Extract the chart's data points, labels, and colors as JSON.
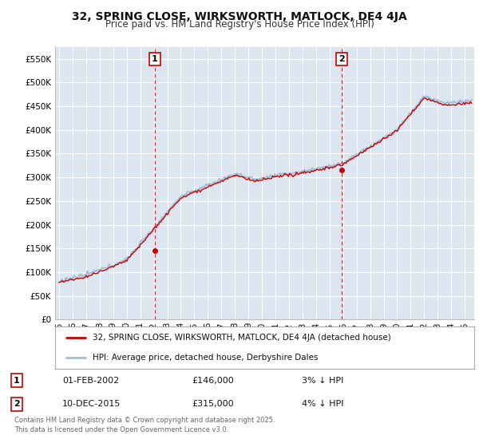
{
  "title": "32, SPRING CLOSE, WIRKSWORTH, MATLOCK, DE4 4JA",
  "subtitle": "Price paid vs. HM Land Registry's House Price Index (HPI)",
  "title_fontsize": 10,
  "subtitle_fontsize": 8.5,
  "ylim": [
    0,
    575000
  ],
  "yticks": [
    0,
    50000,
    100000,
    150000,
    200000,
    250000,
    300000,
    350000,
    400000,
    450000,
    500000,
    550000
  ],
  "ytick_labels": [
    "£0",
    "£50K",
    "£100K",
    "£150K",
    "£200K",
    "£250K",
    "£300K",
    "£350K",
    "£400K",
    "£450K",
    "£500K",
    "£550K"
  ],
  "background_color": "#ffffff",
  "plot_bg_color": "#dce6f1",
  "grid_color": "#ffffff",
  "annotation1": {
    "label": "1",
    "date_str": "01-FEB-2002",
    "price": 146000,
    "rel": "3% ↓ HPI"
  },
  "annotation2": {
    "label": "2",
    "date_str": "10-DEC-2015",
    "price": 315000,
    "rel": "4% ↓ HPI"
  },
  "legend_line1": "32, SPRING CLOSE, WIRKSWORTH, MATLOCK, DE4 4JA (detached house)",
  "legend_line2": "HPI: Average price, detached house, Derbyshire Dales",
  "footer": "Contains HM Land Registry data © Crown copyright and database right 2025.\nThis data is licensed under the Open Government Licence v3.0.",
  "hpi_color": "#a0bdd8",
  "price_color": "#cc0000",
  "sale1_year": 2002.083,
  "sale1_price": 146000,
  "sale2_year": 2015.917,
  "sale2_price": 315000,
  "x_start": 1995,
  "x_end": 2025,
  "x_ticks": [
    1995,
    1996,
    1997,
    1998,
    1999,
    2000,
    2001,
    2002,
    2003,
    2004,
    2005,
    2006,
    2007,
    2008,
    2009,
    2010,
    2011,
    2012,
    2013,
    2014,
    2015,
    2016,
    2017,
    2018,
    2019,
    2020,
    2021,
    2022,
    2023,
    2024,
    2025
  ]
}
